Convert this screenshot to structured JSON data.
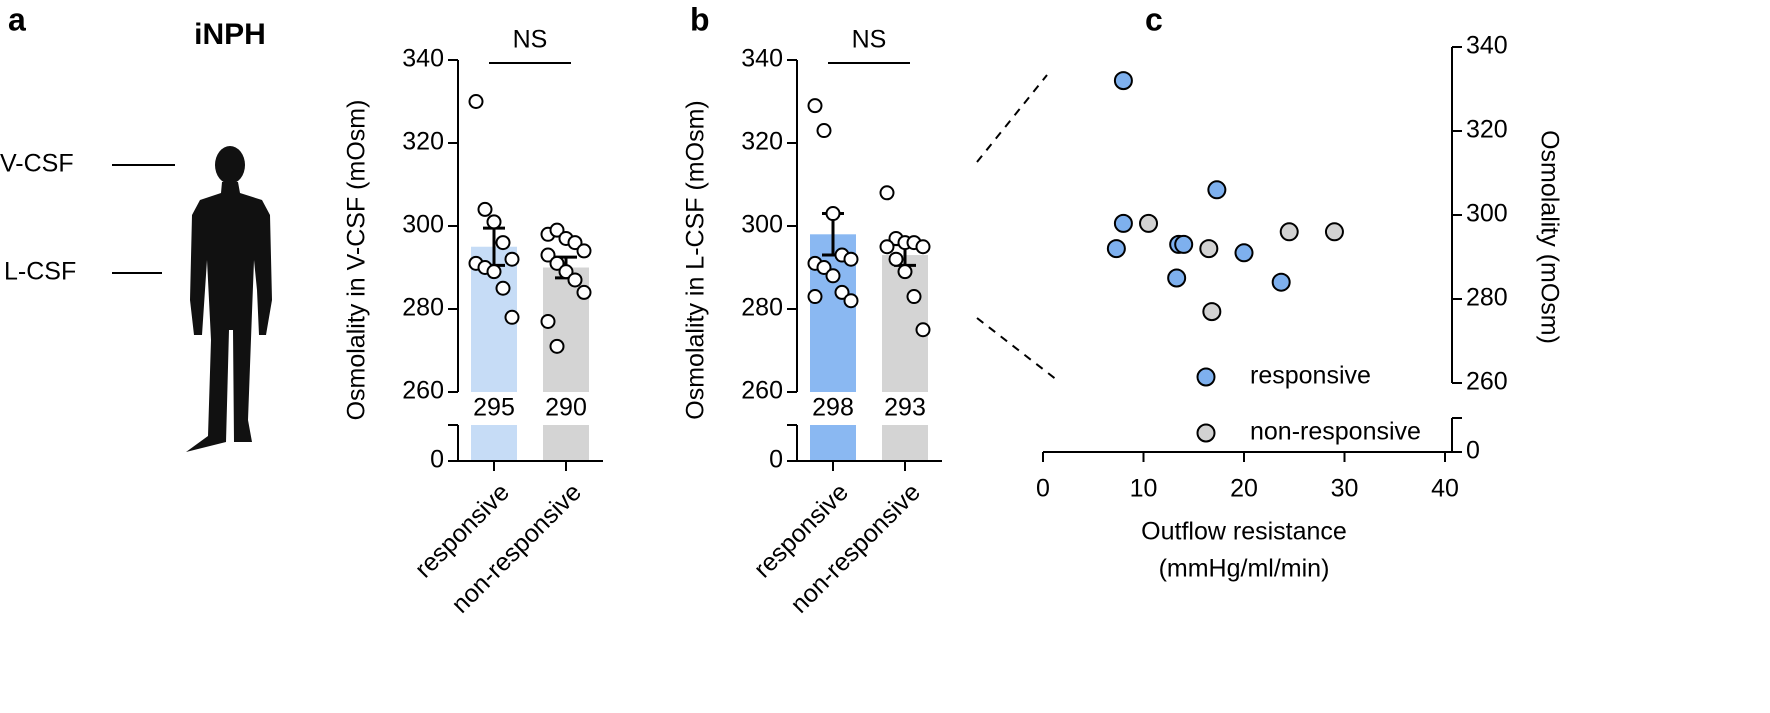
{
  "illustration": {
    "label": "a",
    "title": "iNPH",
    "annotations": [
      "V-CSF",
      "L-CSF"
    ]
  },
  "chart_data": [
    {
      "type": "bar",
      "ylabel": "Osmolality in V-CSF (mOsm)",
      "annotation": "NS",
      "categories": [
        "responsive",
        "non-responsive"
      ],
      "values": [
        295,
        290
      ],
      "errors": [
        4.5,
        2.5
      ],
      "colors": [
        "#c6dcf6",
        "#d4d4d4"
      ],
      "points": [
        [
          330,
          304,
          301,
          296,
          292,
          291,
          290,
          289,
          285,
          278
        ],
        [
          298,
          299,
          297,
          296,
          294,
          293,
          291,
          289,
          287,
          284,
          277,
          271
        ]
      ],
      "ylim": [
        0,
        340
      ],
      "ybreak": 260,
      "yticks": [
        0,
        260,
        280,
        300,
        320,
        340
      ]
    },
    {
      "type": "bar",
      "label": "b",
      "ylabel": "Osmolality in L-CSF (mOsm)",
      "annotation": "NS",
      "categories": [
        "responsive",
        "non-responsive"
      ],
      "values": [
        298,
        293
      ],
      "errors": [
        5,
        2.5
      ],
      "colors": [
        "#8ab8f2",
        "#d4d4d4"
      ],
      "points": [
        [
          329,
          323,
          303,
          293,
          292,
          291,
          290,
          288,
          284,
          282,
          283
        ],
        [
          308,
          297,
          296,
          296,
          295,
          295,
          292,
          289,
          283,
          275
        ]
      ],
      "ylim": [
        0,
        340
      ],
      "ybreak": 260,
      "yticks": [
        0,
        260,
        280,
        300,
        320,
        340
      ]
    },
    {
      "type": "scatter",
      "label": "c",
      "xlabel": [
        "Outflow resistance",
        "(mmHg/ml/min)"
      ],
      "ylabel": "Osmolality (mOsm)",
      "series": [
        {
          "name": "responsive",
          "color": "#7eb0ee",
          "x": [
            8,
            8,
            7.3,
            13.5,
            14,
            17.3,
            13.3,
            20,
            23.7
          ],
          "y": [
            332,
            298,
            292,
            293,
            293,
            306,
            285,
            291,
            284
          ]
        },
        {
          "name": "non-responsive",
          "color": "#d2d2d2",
          "x": [
            10.5,
            16.5,
            16.8,
            24.5,
            29
          ],
          "y": [
            298,
            292,
            277,
            296,
            296
          ]
        }
      ],
      "xlim": [
        0,
        40
      ],
      "xticks": [
        0,
        10,
        20,
        30,
        40
      ],
      "ylim": [
        0,
        340
      ],
      "ybreak": 260,
      "yticks": [
        0,
        260,
        280,
        300,
        320,
        340
      ]
    }
  ]
}
